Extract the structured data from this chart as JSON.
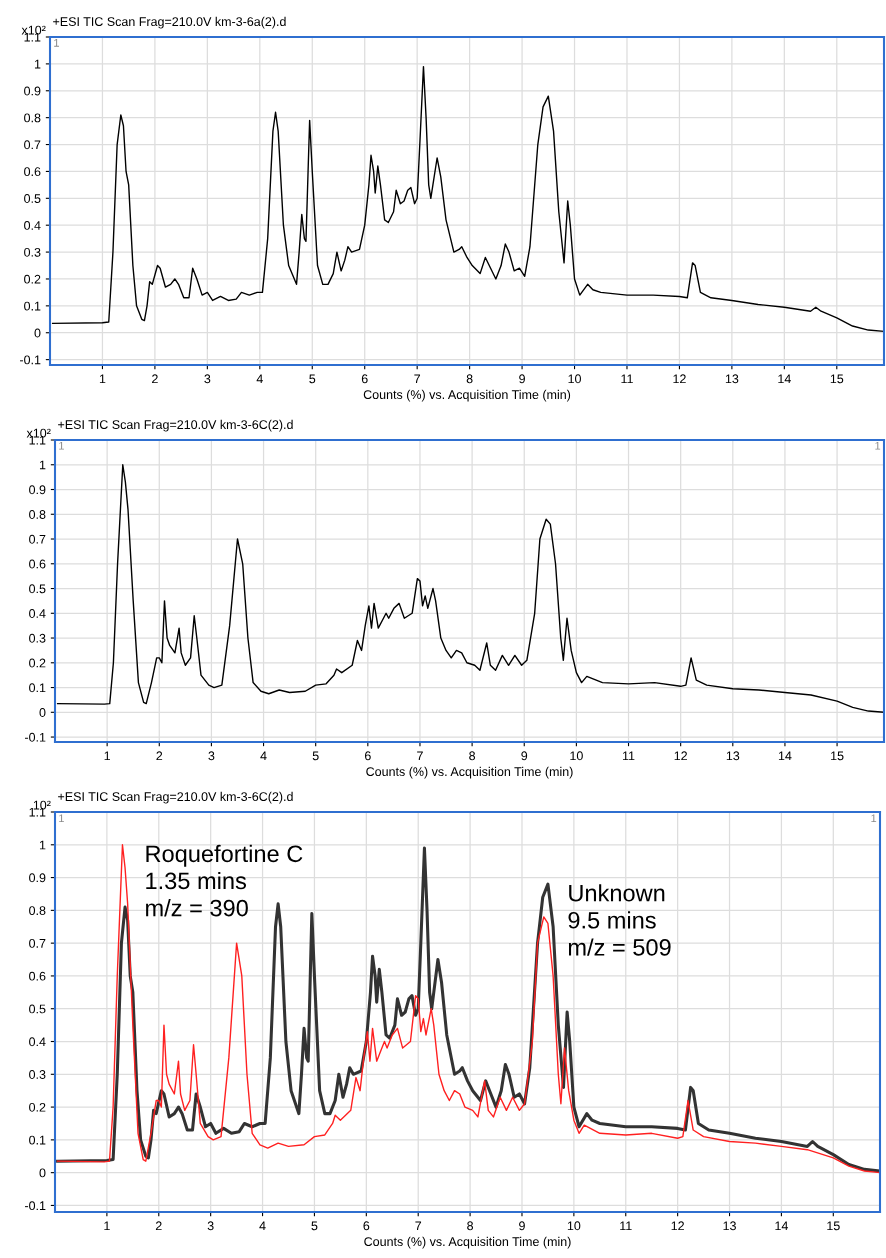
{
  "chart_data": [
    {
      "type": "line",
      "title": "+ESI TIC Scan Frag=210.0V km-3-6a(2).d",
      "ylabel": "x10²",
      "xlabel": "Counts (%) vs. Acquisition Time (min)",
      "annotations": [
        "1"
      ],
      "xlim": [
        0,
        15.9
      ],
      "xticks": [
        1,
        2,
        3,
        4,
        5,
        6,
        7,
        8,
        9,
        10,
        11,
        12,
        13,
        14,
        15
      ],
      "ylim": [
        -0.12,
        1.1
      ],
      "yticks": [
        -0.1,
        0,
        0.1,
        0.2,
        0.3,
        0.4,
        0.5,
        0.6,
        0.7,
        0.8,
        0.9,
        1,
        1.1
      ],
      "grid": true,
      "series": [
        {
          "color": "#000000",
          "x": [
            0.05,
            1.0,
            1.12,
            1.2,
            1.28,
            1.35,
            1.4,
            1.45,
            1.5,
            1.58,
            1.65,
            1.75,
            1.8,
            1.85,
            1.9,
            1.95,
            2.05,
            2.1,
            2.2,
            2.3,
            2.38,
            2.45,
            2.55,
            2.65,
            2.72,
            2.8,
            2.9,
            3.0,
            3.1,
            3.25,
            3.4,
            3.55,
            3.65,
            3.8,
            3.95,
            4.05,
            4.15,
            4.25,
            4.3,
            4.35,
            4.45,
            4.55,
            4.7,
            4.75,
            4.8,
            4.85,
            4.88,
            4.92,
            4.95,
            5.0,
            5.1,
            5.2,
            5.3,
            5.4,
            5.47,
            5.55,
            5.62,
            5.68,
            5.75,
            5.9,
            6.0,
            6.08,
            6.12,
            6.17,
            6.2,
            6.25,
            6.3,
            6.38,
            6.45,
            6.55,
            6.6,
            6.68,
            6.75,
            6.82,
            6.88,
            6.95,
            7.0,
            7.05,
            7.12,
            7.17,
            7.22,
            7.26,
            7.3,
            7.38,
            7.45,
            7.55,
            7.7,
            7.8,
            7.85,
            7.95,
            8.05,
            8.2,
            8.3,
            8.4,
            8.5,
            8.6,
            8.68,
            8.75,
            8.85,
            8.95,
            9.05,
            9.15,
            9.3,
            9.4,
            9.5,
            9.6,
            9.7,
            9.8,
            9.87,
            9.92,
            10.0,
            10.1,
            10.25,
            10.35,
            10.5,
            11.0,
            11.5,
            12.0,
            12.15,
            12.25,
            12.3,
            12.4,
            12.6,
            13.0,
            13.5,
            14.0,
            14.5,
            14.6,
            14.7,
            15.0,
            15.3,
            15.6,
            15.9
          ],
          "values": [
            0.035,
            0.037,
            0.04,
            0.3,
            0.7,
            0.81,
            0.77,
            0.6,
            0.55,
            0.25,
            0.1,
            0.05,
            0.045,
            0.1,
            0.19,
            0.18,
            0.25,
            0.24,
            0.17,
            0.18,
            0.2,
            0.18,
            0.13,
            0.13,
            0.24,
            0.2,
            0.14,
            0.15,
            0.12,
            0.135,
            0.12,
            0.125,
            0.15,
            0.14,
            0.15,
            0.15,
            0.35,
            0.75,
            0.82,
            0.75,
            0.4,
            0.25,
            0.18,
            0.3,
            0.44,
            0.35,
            0.34,
            0.6,
            0.79,
            0.6,
            0.25,
            0.18,
            0.18,
            0.22,
            0.3,
            0.23,
            0.27,
            0.32,
            0.3,
            0.31,
            0.4,
            0.55,
            0.66,
            0.6,
            0.52,
            0.62,
            0.55,
            0.42,
            0.41,
            0.45,
            0.53,
            0.48,
            0.49,
            0.53,
            0.54,
            0.48,
            0.5,
            0.7,
            0.99,
            0.8,
            0.55,
            0.5,
            0.55,
            0.65,
            0.58,
            0.42,
            0.3,
            0.31,
            0.32,
            0.28,
            0.25,
            0.22,
            0.28,
            0.24,
            0.2,
            0.25,
            0.33,
            0.3,
            0.23,
            0.24,
            0.21,
            0.32,
            0.7,
            0.84,
            0.88,
            0.75,
            0.45,
            0.26,
            0.49,
            0.4,
            0.2,
            0.14,
            0.18,
            0.16,
            0.15,
            0.14,
            0.14,
            0.135,
            0.13,
            0.26,
            0.25,
            0.15,
            0.13,
            0.12,
            0.105,
            0.095,
            0.08,
            0.095,
            0.08,
            0.055,
            0.025,
            0.01,
            0.005
          ]
        }
      ]
    },
    {
      "type": "line",
      "title": "+ESI TIC Scan Frag=210.0V km-3-6C(2).d",
      "ylabel": "x10²",
      "xlabel": "Counts (%) vs. Acquisition Time (min)",
      "annotations": [
        "1",
        "1"
      ],
      "xlim": [
        0,
        15.9
      ],
      "xticks": [
        1,
        2,
        3,
        4,
        5,
        6,
        7,
        8,
        9,
        10,
        11,
        12,
        13,
        14,
        15
      ],
      "ylim": [
        -0.12,
        1.1
      ],
      "yticks": [
        -0.1,
        0,
        0.1,
        0.2,
        0.3,
        0.4,
        0.5,
        0.6,
        0.7,
        0.8,
        0.9,
        1,
        1.1
      ],
      "grid": true,
      "series": [
        {
          "color": "#000000",
          "x": [
            0.05,
            0.95,
            1.05,
            1.12,
            1.2,
            1.3,
            1.35,
            1.4,
            1.5,
            1.6,
            1.7,
            1.75,
            1.85,
            1.95,
            2.0,
            2.05,
            2.1,
            2.15,
            2.2,
            2.3,
            2.38,
            2.42,
            2.5,
            2.6,
            2.67,
            2.72,
            2.8,
            2.95,
            3.05,
            3.2,
            3.35,
            3.5,
            3.6,
            3.7,
            3.8,
            3.95,
            4.1,
            4.3,
            4.5,
            4.8,
            5.0,
            5.2,
            5.35,
            5.4,
            5.5,
            5.7,
            5.8,
            5.88,
            5.95,
            6.02,
            6.07,
            6.12,
            6.2,
            6.3,
            6.35,
            6.4,
            6.5,
            6.6,
            6.7,
            6.85,
            6.95,
            7.0,
            7.05,
            7.1,
            7.15,
            7.25,
            7.3,
            7.4,
            7.5,
            7.6,
            7.7,
            7.8,
            7.9,
            8.05,
            8.15,
            8.28,
            8.35,
            8.45,
            8.58,
            8.7,
            8.82,
            8.95,
            9.05,
            9.2,
            9.3,
            9.42,
            9.5,
            9.6,
            9.7,
            9.75,
            9.82,
            9.9,
            10.0,
            10.1,
            10.2,
            10.5,
            11.0,
            11.5,
            12.0,
            12.1,
            12.2,
            12.3,
            12.5,
            13.0,
            13.5,
            14.0,
            14.5,
            15.0,
            15.3,
            15.6,
            15.9
          ],
          "values": [
            0.035,
            0.033,
            0.035,
            0.2,
            0.6,
            1.0,
            0.93,
            0.82,
            0.45,
            0.12,
            0.04,
            0.035,
            0.12,
            0.22,
            0.22,
            0.2,
            0.45,
            0.3,
            0.27,
            0.24,
            0.34,
            0.24,
            0.19,
            0.22,
            0.39,
            0.3,
            0.15,
            0.11,
            0.1,
            0.11,
            0.35,
            0.7,
            0.6,
            0.3,
            0.12,
            0.085,
            0.075,
            0.09,
            0.08,
            0.085,
            0.11,
            0.115,
            0.15,
            0.175,
            0.16,
            0.19,
            0.29,
            0.25,
            0.35,
            0.43,
            0.34,
            0.44,
            0.34,
            0.38,
            0.4,
            0.38,
            0.42,
            0.44,
            0.38,
            0.4,
            0.54,
            0.53,
            0.43,
            0.47,
            0.42,
            0.5,
            0.45,
            0.3,
            0.25,
            0.22,
            0.25,
            0.24,
            0.2,
            0.19,
            0.17,
            0.28,
            0.19,
            0.17,
            0.23,
            0.19,
            0.23,
            0.19,
            0.21,
            0.4,
            0.7,
            0.78,
            0.76,
            0.6,
            0.3,
            0.21,
            0.38,
            0.25,
            0.16,
            0.12,
            0.145,
            0.12,
            0.115,
            0.12,
            0.105,
            0.11,
            0.22,
            0.13,
            0.11,
            0.095,
            0.09,
            0.08,
            0.07,
            0.045,
            0.02,
            0.005,
            0.0
          ]
        }
      ]
    },
    {
      "type": "line",
      "title": "+ESI TIC Scan Frag=210.0V km-3-6C(2).d",
      "ylabel": "10²",
      "xlabel": "Counts (%) vs. Acquisition Time (min)",
      "annotations": [
        "1",
        "1",
        {
          "text": "Roquefortine C\n1.35 mins\nm/z = 390",
          "x": 1.35,
          "y": 1.0
        },
        {
          "text": "Unknown\n9.5 mins\nm/z = 509",
          "x": 9.5,
          "y": 0.88
        }
      ],
      "xlim": [
        0,
        15.9
      ],
      "xticks": [
        1,
        2,
        3,
        4,
        5,
        6,
        7,
        8,
        9,
        10,
        11,
        12,
        13,
        14,
        15
      ],
      "ylim": [
        -0.12,
        1.1
      ],
      "yticks": [
        -0.1,
        0,
        0.1,
        0.2,
        0.3,
        0.4,
        0.5,
        0.6,
        0.7,
        0.8,
        0.9,
        1,
        1.1
      ],
      "grid": true,
      "series": [
        {
          "color": "#333333",
          "x": [
            0.05,
            1.0,
            1.12,
            1.2,
            1.28,
            1.35,
            1.4,
            1.45,
            1.5,
            1.58,
            1.65,
            1.75,
            1.8,
            1.85,
            1.9,
            1.95,
            2.05,
            2.1,
            2.2,
            2.3,
            2.38,
            2.45,
            2.55,
            2.65,
            2.72,
            2.8,
            2.9,
            3.0,
            3.1,
            3.25,
            3.4,
            3.55,
            3.65,
            3.8,
            3.95,
            4.05,
            4.15,
            4.25,
            4.3,
            4.35,
            4.45,
            4.55,
            4.7,
            4.75,
            4.8,
            4.85,
            4.88,
            4.92,
            4.95,
            5.0,
            5.1,
            5.2,
            5.3,
            5.4,
            5.47,
            5.55,
            5.62,
            5.68,
            5.75,
            5.9,
            6.0,
            6.08,
            6.12,
            6.17,
            6.2,
            6.25,
            6.3,
            6.38,
            6.45,
            6.55,
            6.6,
            6.68,
            6.75,
            6.82,
            6.88,
            6.95,
            7.0,
            7.05,
            7.12,
            7.17,
            7.22,
            7.26,
            7.3,
            7.38,
            7.45,
            7.55,
            7.7,
            7.8,
            7.85,
            7.95,
            8.05,
            8.2,
            8.3,
            8.4,
            8.5,
            8.6,
            8.68,
            8.75,
            8.85,
            8.95,
            9.05,
            9.15,
            9.3,
            9.4,
            9.5,
            9.6,
            9.7,
            9.8,
            9.87,
            9.92,
            10.0,
            10.1,
            10.25,
            10.35,
            10.5,
            11.0,
            11.5,
            12.0,
            12.15,
            12.25,
            12.3,
            12.4,
            12.6,
            13.0,
            13.5,
            14.0,
            14.5,
            14.6,
            14.7,
            15.0,
            15.3,
            15.6,
            15.9
          ],
          "values": [
            0.035,
            0.037,
            0.04,
            0.3,
            0.7,
            0.81,
            0.77,
            0.6,
            0.55,
            0.25,
            0.1,
            0.05,
            0.045,
            0.1,
            0.19,
            0.18,
            0.25,
            0.24,
            0.17,
            0.18,
            0.2,
            0.18,
            0.13,
            0.13,
            0.24,
            0.2,
            0.14,
            0.15,
            0.12,
            0.135,
            0.12,
            0.125,
            0.15,
            0.14,
            0.15,
            0.15,
            0.35,
            0.75,
            0.82,
            0.75,
            0.4,
            0.25,
            0.18,
            0.3,
            0.44,
            0.35,
            0.34,
            0.6,
            0.79,
            0.6,
            0.25,
            0.18,
            0.18,
            0.22,
            0.3,
            0.23,
            0.27,
            0.32,
            0.3,
            0.31,
            0.4,
            0.55,
            0.66,
            0.6,
            0.52,
            0.62,
            0.55,
            0.42,
            0.41,
            0.45,
            0.53,
            0.48,
            0.49,
            0.53,
            0.54,
            0.48,
            0.5,
            0.7,
            0.99,
            0.8,
            0.55,
            0.5,
            0.55,
            0.65,
            0.58,
            0.42,
            0.3,
            0.31,
            0.32,
            0.28,
            0.25,
            0.22,
            0.28,
            0.24,
            0.2,
            0.25,
            0.33,
            0.3,
            0.23,
            0.24,
            0.21,
            0.32,
            0.7,
            0.84,
            0.88,
            0.75,
            0.45,
            0.26,
            0.49,
            0.4,
            0.2,
            0.14,
            0.18,
            0.16,
            0.15,
            0.14,
            0.14,
            0.135,
            0.13,
            0.26,
            0.25,
            0.15,
            0.13,
            0.12,
            0.105,
            0.095,
            0.08,
            0.095,
            0.08,
            0.055,
            0.025,
            0.01,
            0.005
          ]
        },
        {
          "color": "#ff2020",
          "x": [
            0.05,
            0.95,
            1.05,
            1.12,
            1.2,
            1.3,
            1.35,
            1.4,
            1.5,
            1.6,
            1.7,
            1.75,
            1.85,
            1.95,
            2.0,
            2.05,
            2.1,
            2.15,
            2.2,
            2.3,
            2.38,
            2.42,
            2.5,
            2.6,
            2.67,
            2.72,
            2.8,
            2.95,
            3.05,
            3.2,
            3.35,
            3.5,
            3.6,
            3.7,
            3.8,
            3.95,
            4.1,
            4.3,
            4.5,
            4.8,
            5.0,
            5.2,
            5.35,
            5.4,
            5.5,
            5.7,
            5.8,
            5.88,
            5.95,
            6.02,
            6.07,
            6.12,
            6.2,
            6.3,
            6.35,
            6.4,
            6.5,
            6.6,
            6.7,
            6.85,
            6.95,
            7.0,
            7.05,
            7.1,
            7.15,
            7.25,
            7.3,
            7.4,
            7.5,
            7.6,
            7.7,
            7.8,
            7.9,
            8.05,
            8.15,
            8.28,
            8.35,
            8.45,
            8.58,
            8.7,
            8.82,
            8.95,
            9.05,
            9.2,
            9.3,
            9.42,
            9.5,
            9.6,
            9.7,
            9.75,
            9.82,
            9.9,
            10.0,
            10.1,
            10.2,
            10.5,
            11.0,
            11.5,
            12.0,
            12.1,
            12.2,
            12.3,
            12.5,
            13.0,
            13.5,
            14.0,
            14.5,
            15.0,
            15.3,
            15.6,
            15.9
          ],
          "values": [
            0.035,
            0.033,
            0.035,
            0.2,
            0.6,
            1.0,
            0.93,
            0.82,
            0.45,
            0.12,
            0.04,
            0.035,
            0.12,
            0.22,
            0.22,
            0.2,
            0.45,
            0.3,
            0.27,
            0.24,
            0.34,
            0.24,
            0.19,
            0.22,
            0.39,
            0.3,
            0.15,
            0.11,
            0.1,
            0.11,
            0.35,
            0.7,
            0.6,
            0.3,
            0.12,
            0.085,
            0.075,
            0.09,
            0.08,
            0.085,
            0.11,
            0.115,
            0.15,
            0.175,
            0.16,
            0.19,
            0.29,
            0.25,
            0.35,
            0.43,
            0.34,
            0.44,
            0.34,
            0.38,
            0.4,
            0.38,
            0.42,
            0.44,
            0.38,
            0.4,
            0.54,
            0.53,
            0.43,
            0.47,
            0.42,
            0.5,
            0.45,
            0.3,
            0.25,
            0.22,
            0.25,
            0.24,
            0.2,
            0.19,
            0.17,
            0.28,
            0.19,
            0.17,
            0.23,
            0.19,
            0.23,
            0.19,
            0.21,
            0.4,
            0.7,
            0.78,
            0.76,
            0.6,
            0.3,
            0.21,
            0.38,
            0.25,
            0.16,
            0.12,
            0.145,
            0.12,
            0.115,
            0.12,
            0.105,
            0.11,
            0.22,
            0.13,
            0.11,
            0.095,
            0.09,
            0.08,
            0.07,
            0.045,
            0.02,
            0.005,
            0.0
          ]
        }
      ]
    }
  ]
}
